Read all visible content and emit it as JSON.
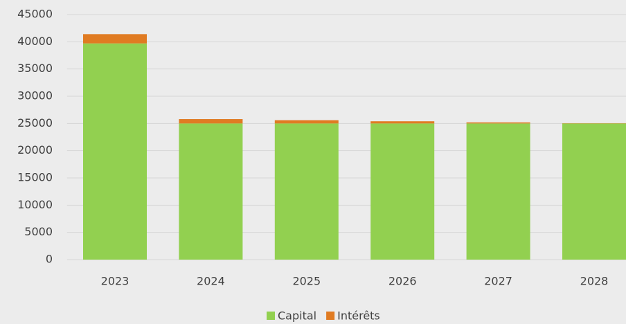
{
  "chart_data": {
    "type": "stacked_bar",
    "categories": [
      "2023",
      "2024",
      "2025",
      "2026",
      "2027",
      "2028"
    ],
    "series": [
      {
        "name": "Capital",
        "color": "#92d050",
        "values": [
          39700,
          25000,
          25000,
          25000,
          25000,
          25000
        ]
      },
      {
        "name": "Intérêts",
        "color": "#e07b22",
        "values": [
          1700,
          800,
          600,
          400,
          200,
          50
        ]
      }
    ],
    "ylim": [
      0,
      45000
    ],
    "yticks": [
      0,
      5000,
      10000,
      15000,
      20000,
      25000,
      30000,
      35000,
      40000,
      45000
    ],
    "grid": true,
    "legend": "bottom"
  }
}
